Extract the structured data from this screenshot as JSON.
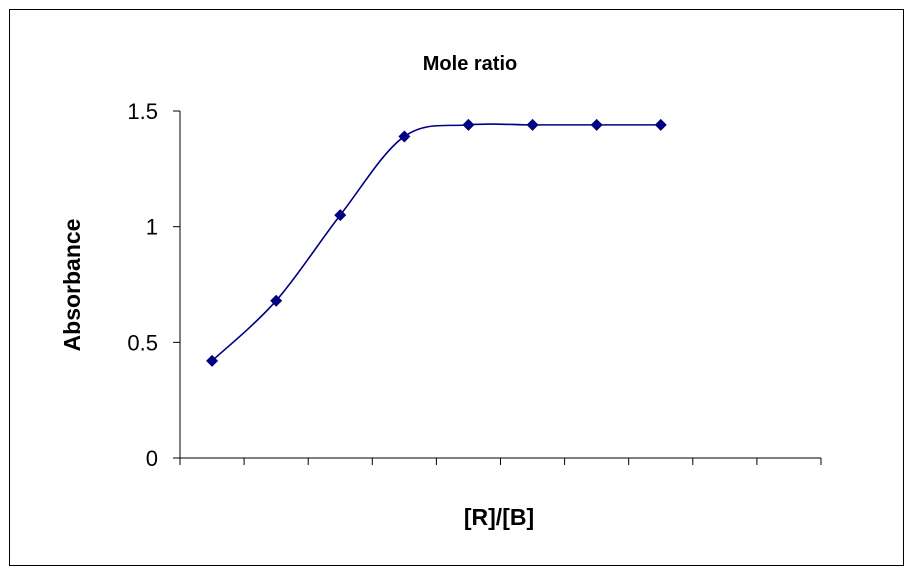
{
  "chart_data": {
    "type": "line",
    "title": "Mole ratio",
    "xlabel": "[R]/[B]",
    "ylabel": "Absorbance",
    "ylim": [
      0,
      1.5
    ],
    "yticks": [
      "0",
      "0.5",
      "1",
      "1.5"
    ],
    "x_categories": 10,
    "smooth": true,
    "marker": "diamond",
    "grid": false,
    "legend": "none",
    "colors": {
      "series": "#000080",
      "axis": "#000000"
    },
    "series": [
      {
        "x": [
          1,
          2,
          3,
          4,
          5,
          6,
          7,
          8
        ],
        "values": [
          0.42,
          0.68,
          1.05,
          1.39,
          1.44,
          1.44,
          1.44,
          1.44
        ]
      }
    ]
  }
}
